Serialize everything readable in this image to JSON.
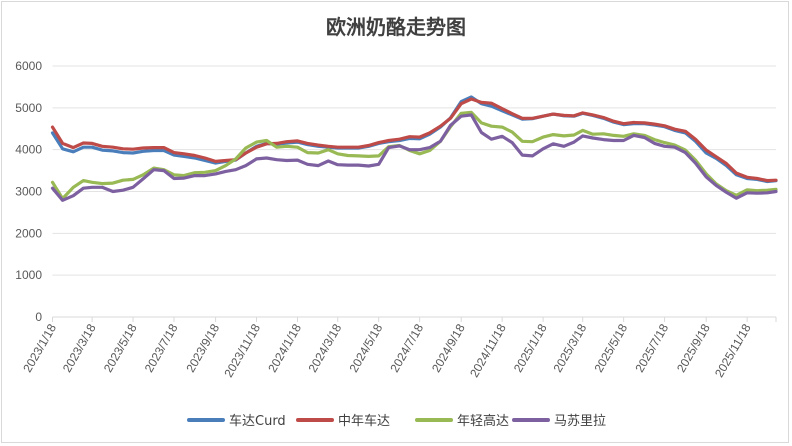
{
  "chart_data": {
    "type": "line",
    "title": "欧洲奶酪走势图",
    "xlabel": "",
    "ylabel": "",
    "ylim": [
      0,
      6000
    ],
    "yticks": [
      "0",
      "1000",
      "2000",
      "3000",
      "4000",
      "5000",
      "6000"
    ],
    "xlim": [
      "2023/1/18",
      "2025/12/31"
    ],
    "xtick_labels": [
      "2023/1/18",
      "2023/3/18",
      "2023/5/18",
      "2023/7/18",
      "2023/9/18",
      "2023/11/18",
      "2024/1/18",
      "2024/3/18",
      "2024/5/18",
      "2024/7/18",
      "2024/9/18",
      "2024/11/18",
      "2025/1/18",
      "2025/3/18",
      "2025/5/18",
      "2025/7/18",
      "2025/9/18",
      "2025/11/18"
    ],
    "grid": "horizontal",
    "legend_position": "bottom",
    "x": [
      "2023/1/18",
      "2023/2/2",
      "2023/2/18",
      "2023/3/5",
      "2023/3/18",
      "2023/4/2",
      "2023/4/18",
      "2023/5/3",
      "2023/5/18",
      "2023/6/2",
      "2023/6/18",
      "2023/7/3",
      "2023/7/18",
      "2023/8/2",
      "2023/8/18",
      "2023/9/2",
      "2023/9/18",
      "2023/10/3",
      "2023/10/18",
      "2023/11/2",
      "2023/11/18",
      "2023/12/3",
      "2023/12/18",
      "2024/1/2",
      "2024/1/18",
      "2024/2/2",
      "2024/2/18",
      "2024/3/4",
      "2024/3/18",
      "2024/4/2",
      "2024/4/18",
      "2024/5/3",
      "2024/5/18",
      "2024/6/2",
      "2024/6/18",
      "2024/7/3",
      "2024/7/18",
      "2024/8/2",
      "2024/8/18",
      "2024/9/2",
      "2024/9/18",
      "2024/10/3",
      "2024/10/18",
      "2024/11/2",
      "2024/11/18",
      "2024/12/3",
      "2024/12/18",
      "2025/1/2",
      "2025/1/18",
      "2025/2/2",
      "2025/2/18",
      "2025/3/5",
      "2025/3/18",
      "2025/4/2",
      "2025/4/18",
      "2025/5/3",
      "2025/5/18",
      "2025/6/2",
      "2025/6/18",
      "2025/7/3",
      "2025/7/18",
      "2025/8/2",
      "2025/8/18",
      "2025/9/2",
      "2025/9/18",
      "2025/10/3",
      "2025/10/18",
      "2025/11/2",
      "2025/11/18",
      "2025/12/3",
      "2025/12/18",
      "2025/12/31"
    ],
    "series": [
      {
        "name": "车达Curd",
        "color": "#4a7ebb",
        "values": [
          4400,
          4020,
          3950,
          4060,
          4060,
          3990,
          3970,
          3930,
          3920,
          3960,
          3980,
          3980,
          3870,
          3840,
          3800,
          3740,
          3680,
          3720,
          3750,
          3920,
          4080,
          4150,
          4130,
          4160,
          4180,
          4120,
          4080,
          4060,
          4040,
          4040,
          4040,
          4080,
          4150,
          4190,
          4220,
          4270,
          4260,
          4370,
          4540,
          4760,
          5150,
          5260,
          5100,
          5040,
          4930,
          4830,
          4730,
          4740,
          4800,
          4850,
          4810,
          4800,
          4870,
          4820,
          4750,
          4660,
          4600,
          4620,
          4620,
          4590,
          4550,
          4460,
          4400,
          4200,
          3920,
          3790,
          3620,
          3400,
          3310,
          3290,
          3240,
          3260
        ]
      },
      {
        "name": "中年车达",
        "color": "#be4b48",
        "values": [
          4540,
          4150,
          4050,
          4160,
          4150,
          4080,
          4060,
          4020,
          4010,
          4040,
          4050,
          4050,
          3930,
          3900,
          3860,
          3800,
          3720,
          3740,
          3760,
          3920,
          4060,
          4140,
          4150,
          4190,
          4210,
          4150,
          4110,
          4080,
          4060,
          4060,
          4060,
          4100,
          4170,
          4220,
          4250,
          4310,
          4300,
          4400,
          4560,
          4750,
          5100,
          5210,
          5130,
          5110,
          4980,
          4860,
          4750,
          4750,
          4800,
          4850,
          4820,
          4810,
          4880,
          4830,
          4770,
          4680,
          4620,
          4650,
          4640,
          4610,
          4570,
          4490,
          4440,
          4250,
          3990,
          3830,
          3670,
          3440,
          3340,
          3310,
          3260,
          3270
        ]
      },
      {
        "name": "年轻高达",
        "color": "#98b954",
        "values": [
          3220,
          2830,
          3100,
          3260,
          3220,
          3190,
          3200,
          3270,
          3290,
          3400,
          3560,
          3520,
          3400,
          3380,
          3450,
          3460,
          3500,
          3620,
          3780,
          4040,
          4180,
          4220,
          4060,
          4080,
          4060,
          3930,
          3920,
          4000,
          3900,
          3860,
          3850,
          3840,
          3850,
          4070,
          4100,
          3980,
          3900,
          3980,
          4200,
          4550,
          4870,
          4890,
          4640,
          4560,
          4540,
          4420,
          4200,
          4190,
          4300,
          4360,
          4330,
          4350,
          4460,
          4370,
          4380,
          4340,
          4320,
          4380,
          4340,
          4240,
          4170,
          4110,
          3990,
          3750,
          3420,
          3180,
          3020,
          2910,
          3040,
          3020,
          3030,
          3050
        ]
      },
      {
        "name": "马苏里拉",
        "color": "#7d60a0",
        "values": [
          3080,
          2790,
          2900,
          3080,
          3100,
          3100,
          3000,
          3030,
          3100,
          3300,
          3520,
          3500,
          3310,
          3320,
          3380,
          3380,
          3420,
          3480,
          3520,
          3620,
          3780,
          3800,
          3760,
          3740,
          3750,
          3650,
          3620,
          3730,
          3640,
          3630,
          3630,
          3610,
          3650,
          4050,
          4090,
          4000,
          4000,
          4050,
          4200,
          4580,
          4800,
          4830,
          4410,
          4250,
          4320,
          4170,
          3870,
          3850,
          4020,
          4140,
          4080,
          4180,
          4330,
          4280,
          4240,
          4220,
          4220,
          4340,
          4290,
          4150,
          4080,
          4060,
          3930,
          3680,
          3350,
          3140,
          2980,
          2840,
          2970,
          2960,
          2970,
          3000
        ]
      }
    ]
  }
}
